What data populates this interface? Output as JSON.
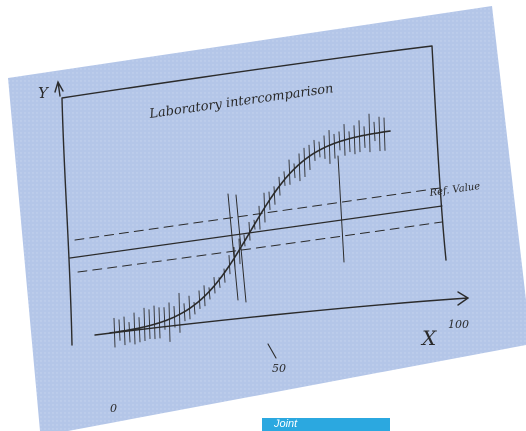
{
  "sketch": {
    "title": "Laboratory intercomparison",
    "y_axis_label": "Y",
    "x_axis_label": "X",
    "reference_label": "Ref. Value",
    "x_ticks": [
      "0",
      "50",
      "100"
    ]
  },
  "caption": "Joint"
}
